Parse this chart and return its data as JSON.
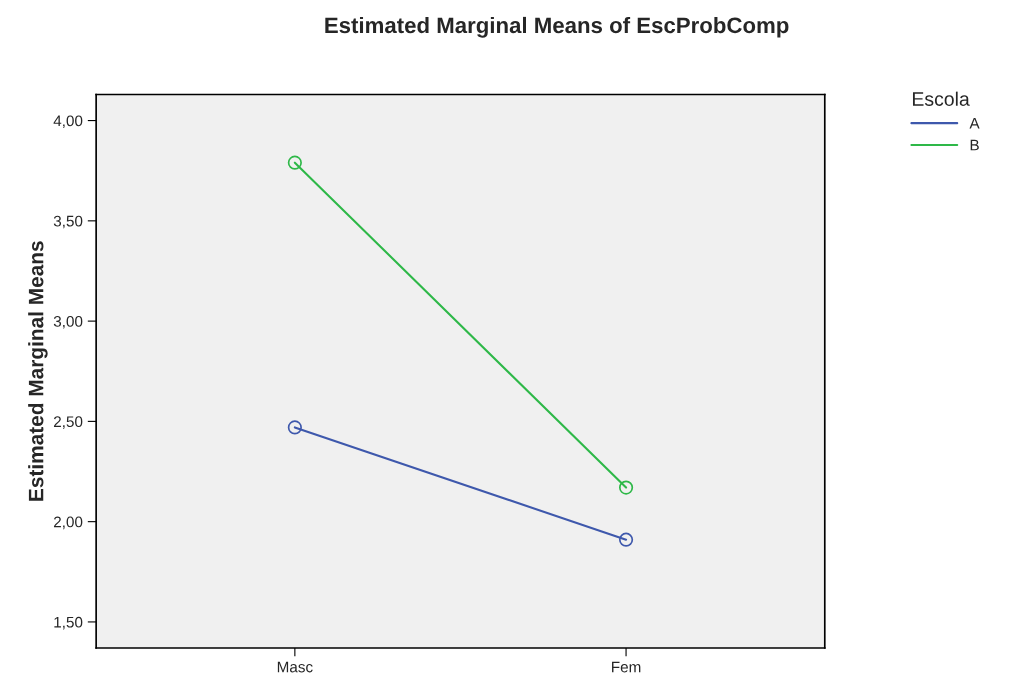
{
  "chart_data": {
    "type": "line",
    "title": "Estimated Marginal Means of EscProbComp",
    "ylabel": "Estimated Marginal Means",
    "legend_title": "Escola",
    "categories": [
      "Masc",
      "Fem"
    ],
    "series": [
      {
        "name": "A",
        "color": "#3e58ac",
        "values": [
          2.47,
          1.91
        ]
      },
      {
        "name": "B",
        "color": "#2eb848",
        "values": [
          3.79,
          2.17
        ]
      }
    ],
    "ylim": [
      1.37,
      4.13
    ],
    "yticks": [
      {
        "value": 1.5,
        "label": "1,50"
      },
      {
        "value": 2,
        "label": "2,00"
      },
      {
        "value": 2.5,
        "label": "2,50"
      },
      {
        "value": 3,
        "label": "3,00"
      },
      {
        "value": 3.5,
        "label": "3,50"
      },
      {
        "value": 4,
        "label": "4,00"
      }
    ],
    "marker": "circle",
    "line_style": "solid",
    "grid": false,
    "legend": "top right"
  }
}
